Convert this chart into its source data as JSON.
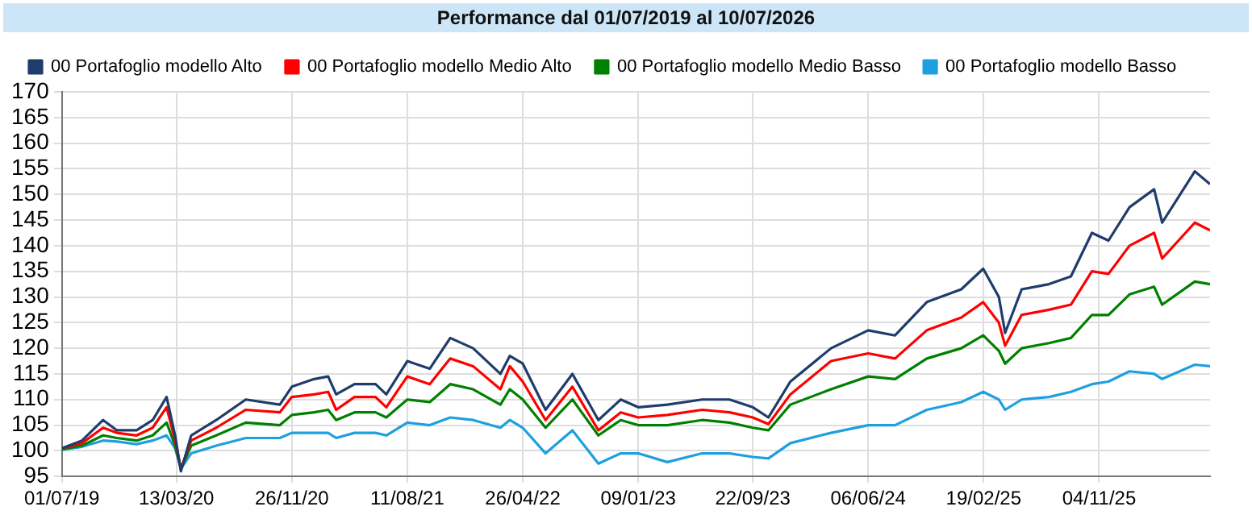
{
  "chart_data": {
    "type": "line",
    "title": "Performance dal 01/07/2019 al 10/07/2026",
    "x": [
      "2019-07-01",
      "2019-08-15",
      "2019-10-01",
      "2019-11-01",
      "2019-12-15",
      "2020-01-20",
      "2020-02-20",
      "2020-03-10",
      "2020-03-23",
      "2020-04-15",
      "2020-06-10",
      "2020-08-15",
      "2020-10-30",
      "2020-11-26",
      "2021-01-15",
      "2021-02-15",
      "2021-03-05",
      "2021-04-15",
      "2021-06-01",
      "2021-06-25",
      "2021-08-11",
      "2021-09-30",
      "2021-11-15",
      "2022-01-05",
      "2022-03-07",
      "2022-03-28",
      "2022-04-26",
      "2022-06-16",
      "2022-08-15",
      "2022-10-12",
      "2022-12-01",
      "2023-01-09",
      "2023-03-15",
      "2023-06-01",
      "2023-08-01",
      "2023-09-22",
      "2023-10-27",
      "2023-12-15",
      "2024-03-15",
      "2024-06-06",
      "2024-08-05",
      "2024-10-15",
      "2024-12-31",
      "2025-02-18",
      "2025-03-25",
      "2025-04-08",
      "2025-05-15",
      "2025-07-15",
      "2025-09-02",
      "2025-10-19",
      "2025-11-25",
      "2026-01-11",
      "2026-03-07",
      "2026-03-25",
      "2026-06-06",
      "2026-07-10"
    ],
    "series": [
      {
        "name": "00 Portafoglio modello Alto",
        "color": "#1f3d6b",
        "values": [
          100.5,
          102,
          106,
          104,
          104,
          106,
          110.5,
          103,
          96,
          103,
          106,
          110,
          109,
          112.5,
          114,
          114.5,
          111,
          113,
          113,
          111,
          117.5,
          116,
          122,
          120,
          115,
          118.5,
          117,
          108,
          115,
          106,
          110,
          108.5,
          109,
          110,
          110,
          108.5,
          106.5,
          113.5,
          120,
          123.5,
          122.5,
          129,
          131.5,
          135.5,
          130,
          123,
          131.5,
          132.5,
          134,
          142.5,
          141,
          147.5,
          151,
          144.5,
          154.5,
          152
        ]
      },
      {
        "name": "00 Portafoglio modello Medio Alto",
        "color": "#ff0000",
        "values": [
          100.5,
          101.5,
          104.5,
          103.5,
          103,
          104.5,
          108.5,
          102,
          96.5,
          102,
          104.5,
          108,
          107.5,
          110.5,
          111,
          111.5,
          108,
          110.5,
          110.5,
          108.5,
          114.5,
          113,
          118,
          116.5,
          112,
          116.5,
          113.5,
          106,
          112.5,
          104,
          107.5,
          106.5,
          107,
          108,
          107.5,
          106.5,
          105.2,
          111,
          117.5,
          119,
          118,
          123.5,
          126,
          129,
          125,
          120.5,
          126.5,
          127.5,
          128.5,
          135,
          134.5,
          140,
          142.5,
          137.5,
          144.5,
          143
        ]
      },
      {
        "name": "00 Portafoglio modello Medio Basso",
        "color": "#008000",
        "values": [
          100.3,
          101,
          103,
          102.5,
          102,
          103,
          105.5,
          101,
          96.5,
          101,
          103,
          105.5,
          105,
          107,
          107.5,
          108,
          106,
          107.5,
          107.5,
          106.5,
          110,
          109.5,
          113,
          112,
          109,
          112,
          110,
          104.5,
          110,
          103,
          106,
          105,
          105,
          106,
          105.5,
          104.5,
          104,
          109,
          112,
          114.5,
          114,
          118,
          120,
          122.5,
          119.5,
          117,
          120,
          121,
          122,
          126.5,
          126.5,
          130.5,
          132,
          128.5,
          133,
          132.5
        ]
      },
      {
        "name": "00 Portafoglio modello Basso",
        "color": "#1ea0e0",
        "values": [
          100.2,
          100.8,
          102,
          101.8,
          101.3,
          102,
          103,
          100.5,
          96.5,
          99.5,
          101,
          102.5,
          102.5,
          103.5,
          103.5,
          103.5,
          102.5,
          103.5,
          103.5,
          103,
          105.5,
          105,
          106.5,
          106,
          104.5,
          106,
          104.5,
          99.5,
          104,
          97.5,
          99.5,
          99.5,
          97.8,
          99.5,
          99.5,
          98.8,
          98.5,
          101.5,
          103.5,
          105,
          105,
          108,
          109.5,
          111.5,
          110,
          108,
          110,
          110.5,
          111.5,
          113,
          113.5,
          115.5,
          115,
          114,
          116.8,
          116.5
        ]
      }
    ],
    "xlim": [
      "2019-07-01",
      "2026-07-10"
    ],
    "xticks": [
      {
        "value": "2019-07-01",
        "label": "01/07/19"
      },
      {
        "value": "2020-03-13",
        "label": "13/03/20"
      },
      {
        "value": "2020-11-26",
        "label": "26/11/20"
      },
      {
        "value": "2021-08-11",
        "label": "11/08/21"
      },
      {
        "value": "2022-04-26",
        "label": "26/04/22"
      },
      {
        "value": "2023-01-09",
        "label": "09/01/23"
      },
      {
        "value": "2023-09-22",
        "label": "22/09/23"
      },
      {
        "value": "2024-06-06",
        "label": "06/06/24"
      },
      {
        "value": "2025-02-19",
        "label": "19/02/25"
      },
      {
        "value": "2025-11-04",
        "label": "04/11/25"
      }
    ],
    "ylim": [
      95,
      170
    ],
    "yticks": [
      95,
      100,
      105,
      110,
      115,
      120,
      125,
      130,
      135,
      140,
      145,
      150,
      155,
      160,
      165,
      170
    ],
    "grid": true,
    "legend": "top left",
    "marker": "none",
    "line_style": "solid"
  }
}
